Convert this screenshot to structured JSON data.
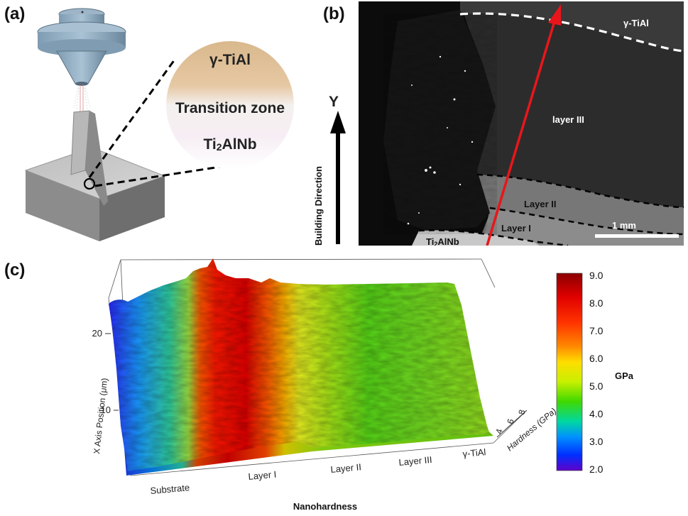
{
  "panels": {
    "a": {
      "letter": "(a)",
      "zone_top": "γ-TiAl",
      "zone_mid": "Transition zone",
      "zone_bot_main": "Ti",
      "zone_bot_sub": "2",
      "zone_bot_rest": "AlNb"
    },
    "b": {
      "letter": "(b)",
      "direction_axis": "Y",
      "direction_label": "Building Direction",
      "region_top": "γ-TiAl",
      "layer3": "layer III",
      "layer2": "Layer II",
      "layer1": "Layer I",
      "substrate_main": "Ti",
      "substrate_sub": "2",
      "substrate_rest": "AlNb",
      "scale_bar": "1 mm"
    },
    "c": {
      "letter": "(c)",
      "title": "Nanohardness",
      "y_axis_label": "X Axis Position (μm)",
      "y_ticks": [
        "20",
        "10"
      ],
      "z_axis_label": "Hardness (GPa)",
      "z_ticks": [
        "4",
        "6",
        "8"
      ],
      "x_categories": [
        "Substrate",
        "Layer I",
        "Layer II",
        "Layer III",
        "γ-TiAl"
      ],
      "colorbar": {
        "unit": "GPa",
        "ticks": [
          "9.0",
          "8.0",
          "7.0",
          "6.0",
          "5.0",
          "4.0",
          "3.0",
          "2.0"
        ],
        "colors": [
          "#8b0000",
          "#e00000",
          "#ff3300",
          "#ff8800",
          "#ffdd00",
          "#c8f000",
          "#40d800",
          "#00d8a0",
          "#0090ff",
          "#0030ff",
          "#6000c8"
        ]
      }
    }
  }
}
